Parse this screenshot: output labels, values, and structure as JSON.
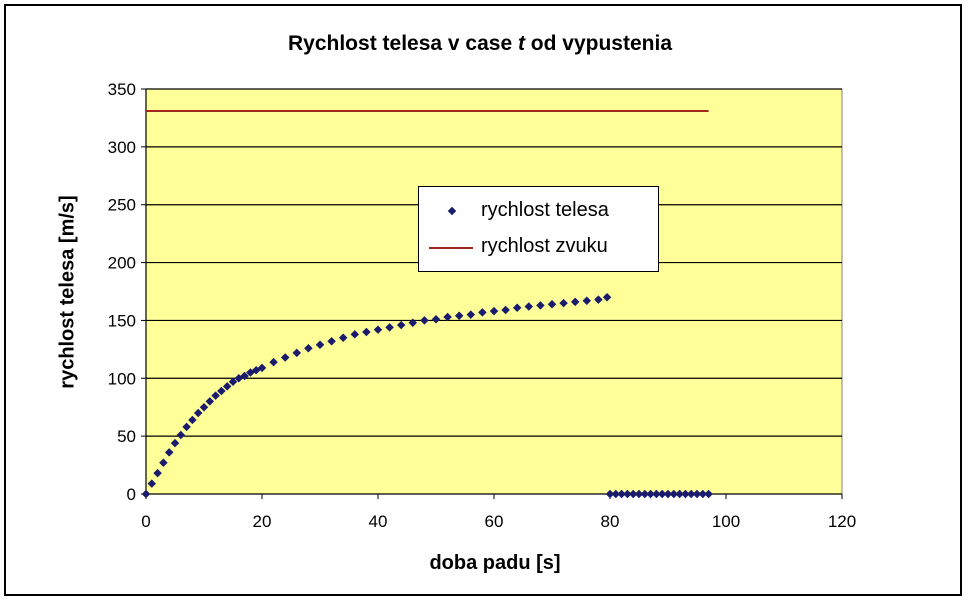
{
  "chart_data": {
    "type": "scatter",
    "title_prefix": "Rychlost telesa v case ",
    "title_var": "t",
    "title_suffix": " od vypustenia",
    "xlabel": "doba padu [s]",
    "ylabel": "rychlost telesa [m/s]",
    "xlim": [
      0,
      120
    ],
    "ylim": [
      0,
      350
    ],
    "xticks": [
      0,
      20,
      40,
      60,
      80,
      100,
      120
    ],
    "yticks": [
      0,
      50,
      100,
      150,
      200,
      250,
      300,
      350
    ],
    "grid": "horizontal",
    "legend_position": "center",
    "series": [
      {
        "name": "rychlost telesa",
        "style": "points",
        "color": "#1b1b6e",
        "x": [
          0,
          1,
          2,
          3,
          4,
          5,
          6,
          7,
          8,
          9,
          10,
          11,
          12,
          13,
          14,
          15,
          16,
          17,
          18,
          19,
          20,
          22,
          24,
          26,
          28,
          30,
          32,
          34,
          36,
          38,
          40,
          42,
          44,
          46,
          48,
          50,
          52,
          54,
          56,
          58,
          60,
          62,
          64,
          66,
          68,
          70,
          72,
          74,
          76,
          78,
          79.5,
          80,
          81,
          82,
          83,
          84,
          85,
          86,
          87,
          88,
          89,
          90,
          91,
          92,
          93,
          94,
          95,
          96,
          97
        ],
        "y": [
          0,
          9,
          18,
          27,
          36,
          44,
          51,
          58,
          64,
          70,
          75,
          80,
          85,
          89,
          93,
          97,
          100,
          102,
          105,
          107,
          109,
          114,
          118,
          122,
          126,
          129,
          132,
          135,
          138,
          140,
          142,
          144,
          146,
          148,
          150,
          151,
          153,
          154,
          155,
          157,
          158,
          159,
          161,
          162,
          163,
          164,
          165,
          166,
          167,
          168,
          170,
          0,
          0,
          0,
          0,
          0,
          0,
          0,
          0,
          0,
          0,
          0,
          0,
          0,
          0,
          0,
          0,
          0,
          0
        ]
      },
      {
        "name": "rychlost zvuku",
        "style": "line",
        "color": "#a0281e",
        "x": [
          0,
          97
        ],
        "y": [
          331,
          331
        ]
      }
    ]
  },
  "colors": {
    "plot_background": "#ffff99",
    "grid": "#000000"
  }
}
